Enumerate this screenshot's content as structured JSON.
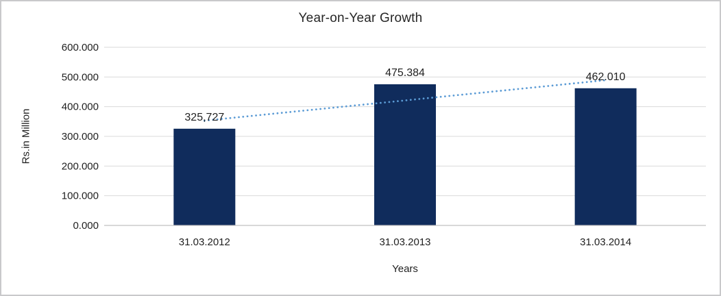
{
  "page": {
    "background": "#ffffff",
    "frame_border_color": "#c9c9cb"
  },
  "chart_data": {
    "type": "bar",
    "title": "Year-on-Year Growth",
    "xlabel": "Years",
    "ylabel": "Rs.in Million",
    "categories": [
      "31.03.2012",
      "31.03.2013",
      "31.03.2014"
    ],
    "values": [
      325.727,
      475.384,
      462.01
    ],
    "data_labels": [
      "325,727",
      "475.384",
      "462.010"
    ],
    "ylim": [
      0,
      600
    ],
    "ytick_step": 100,
    "ytick_labels": [
      "0.000",
      "100.000",
      "200.000",
      "300.000",
      "400.000",
      "500.000",
      "600.000"
    ],
    "grid": true,
    "legend": "none",
    "bar_color": "#102c5c",
    "gridline_color": "#d9d9d9",
    "axis_line_color": "#c0c0c0",
    "text_color": "#1f1f1f",
    "trendline": {
      "type": "linear",
      "style": "dotted",
      "color": "#5b9bd5"
    }
  }
}
